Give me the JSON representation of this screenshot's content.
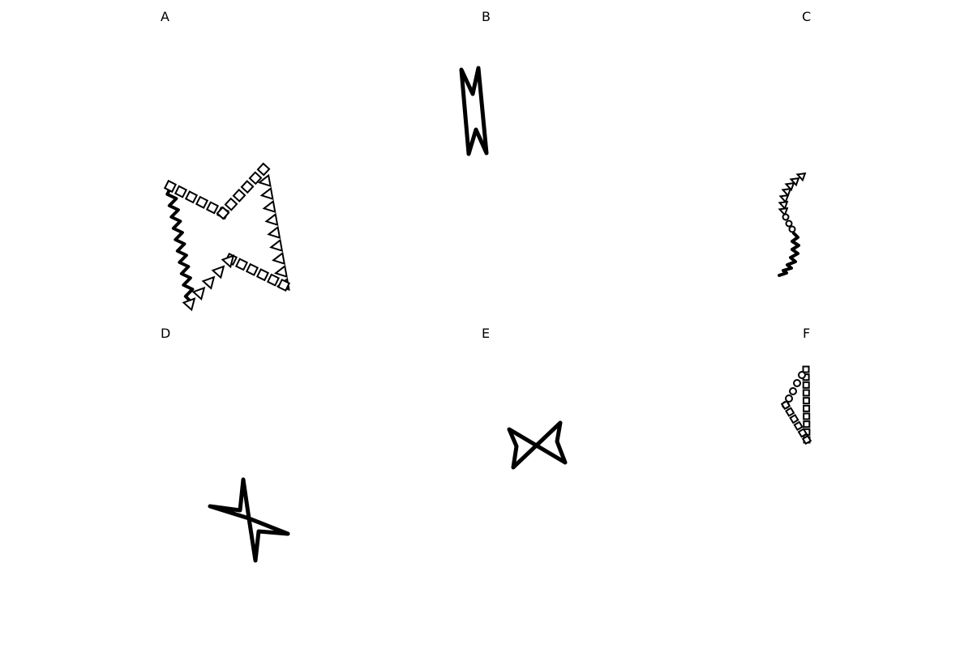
{
  "panels": [
    {
      "id": "A",
      "label": "A"
    },
    {
      "id": "B",
      "label": "B"
    },
    {
      "id": "C",
      "label": "C"
    },
    {
      "id": "D",
      "label": "D"
    },
    {
      "id": "E",
      "label": "E"
    },
    {
      "id": "F",
      "label": "F"
    }
  ],
  "colors": {
    "ink": "#000000",
    "background": "#ffffff"
  }
}
